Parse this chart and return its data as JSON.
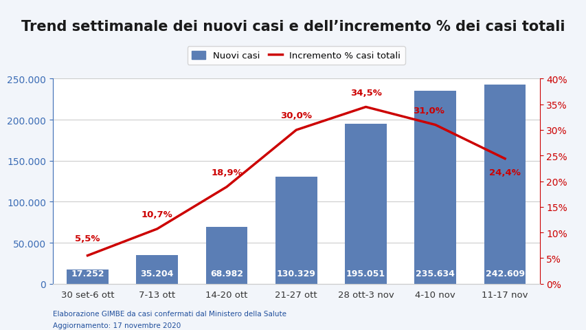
{
  "title": "Trend settimanale dei nuovi casi e dell’incremento % dei casi totali",
  "categories": [
    "30 set-6 ott",
    "7-13 ott",
    "14-20 ott",
    "21-27 ott",
    "28 ott-3 nov",
    "4-10 nov",
    "11-17 nov"
  ],
  "bar_values": [
    17252,
    35204,
    68982,
    130329,
    195051,
    235634,
    242609
  ],
  "bar_labels": [
    "17.252",
    "35.204",
    "68.982",
    "130.329",
    "195.051",
    "235.634",
    "242.609"
  ],
  "line_values": [
    5.5,
    10.7,
    18.9,
    30.0,
    34.5,
    31.0,
    24.4
  ],
  "line_labels": [
    "5,5%",
    "10,7%",
    "18,9%",
    "30,0%",
    "34,5%",
    "31,0%",
    "24,4%"
  ],
  "bar_color": "#5b7eb5",
  "line_color": "#cc0000",
  "bar_label_color": "white",
  "left_axis_color": "#3b6cb5",
  "right_axis_color": "#cc0000",
  "background_color": "#f2f5fa",
  "plot_background": "white",
  "ylim_left": [
    0,
    250000
  ],
  "ylim_right": [
    0,
    40
  ],
  "yticks_left": [
    0,
    50000,
    100000,
    150000,
    200000,
    250000
  ],
  "ytick_labels_left": [
    "0",
    "50.000",
    "100.000",
    "150.000",
    "200.000",
    "250.000"
  ],
  "yticks_right": [
    0,
    5,
    10,
    15,
    20,
    25,
    30,
    35,
    40
  ],
  "ytick_labels_right": [
    "0%",
    "5%",
    "10%",
    "15%",
    "20%",
    "25%",
    "30%",
    "35%",
    "40%"
  ],
  "legend_bar_label": "Nuovi casi",
  "legend_line_label": "Incremento % casi totali",
  "footer_text1": "Elaborazione GIMBE da casi confermati dal Ministero della Salute",
  "footer_text2": "Aggiornamento: 17 novembre 2020",
  "footer_color": "#1f4e9c",
  "title_color": "#1a1a1a",
  "title_fontsize": 15,
  "axis_label_fontsize": 10,
  "bar_label_fontsize": 9,
  "line_label_fontsize": 9.5
}
